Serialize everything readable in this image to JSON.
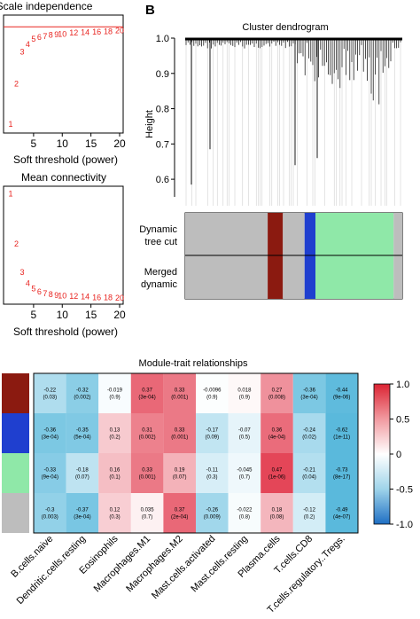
{
  "panel_label_b": "B",
  "scale_panel": {
    "title": "Scale independence",
    "xlabel": "Soft threshold (power)"
  },
  "mean_panel": {
    "title": "Mean connectivity",
    "xlabel": "Soft threshold (power)"
  },
  "dendrogram": {
    "title": "Cluster dendrogram",
    "ylabel": "Height",
    "row_labels": [
      "Dynamic\ntree cut",
      "Merged\ndynamic"
    ]
  },
  "heatmap": {
    "title": "Module-trait relationships"
  },
  "colors": {
    "accent_red": "#e8231f",
    "module_brown": "#8b1a10",
    "module_blue": "#1f3fcf",
    "module_green": "#8fe8a8",
    "module_grey": "#bdbdbd"
  },
  "chart_data": [
    {
      "type": "scatter",
      "title": "Scale independence",
      "xlabel": "Soft threshold (power)",
      "ylabel": "",
      "xlim": [
        1,
        20
      ],
      "x_ticks": [
        "5",
        "10",
        "15",
        "20"
      ],
      "points": [
        {
          "label": "1",
          "x": 1,
          "y": 0.05
        },
        {
          "label": "2",
          "x": 2,
          "y": 0.42
        },
        {
          "label": "3",
          "x": 3,
          "y": 0.71
        },
        {
          "label": "4",
          "x": 4,
          "y": 0.78
        },
        {
          "label": "5",
          "x": 5,
          "y": 0.83
        },
        {
          "label": "6",
          "x": 6,
          "y": 0.845
        },
        {
          "label": "7",
          "x": 7,
          "y": 0.855
        },
        {
          "label": "8",
          "x": 8,
          "y": 0.865
        },
        {
          "label": "9",
          "x": 9,
          "y": 0.87
        },
        {
          "label": "10",
          "x": 10,
          "y": 0.875
        },
        {
          "label": "12",
          "x": 12,
          "y": 0.885
        },
        {
          "label": "14",
          "x": 14,
          "y": 0.89
        },
        {
          "label": "16",
          "x": 16,
          "y": 0.895
        },
        {
          "label": "18",
          "x": 18,
          "y": 0.9
        },
        {
          "label": "20",
          "x": 20,
          "y": 0.905
        }
      ],
      "hline": 0.9
    },
    {
      "type": "scatter",
      "title": "Mean connectivity",
      "xlabel": "Soft threshold (power)",
      "ylabel": "",
      "xlim": [
        1,
        20
      ],
      "x_ticks": [
        "5",
        "10",
        "15",
        "20"
      ],
      "points": [
        {
          "label": "1",
          "x": 1,
          "y": 0.98
        },
        {
          "label": "2",
          "x": 2,
          "y": 0.52
        },
        {
          "label": "3",
          "x": 3,
          "y": 0.26
        },
        {
          "label": "4",
          "x": 4,
          "y": 0.16
        },
        {
          "label": "5",
          "x": 5,
          "y": 0.11
        },
        {
          "label": "6",
          "x": 6,
          "y": 0.08
        },
        {
          "label": "7",
          "x": 7,
          "y": 0.065
        },
        {
          "label": "8",
          "x": 8,
          "y": 0.055
        },
        {
          "label": "9",
          "x": 9,
          "y": 0.05
        },
        {
          "label": "10",
          "x": 10,
          "y": 0.045
        },
        {
          "label": "12",
          "x": 12,
          "y": 0.04
        },
        {
          "label": "14",
          "x": 14,
          "y": 0.035
        },
        {
          "label": "16",
          "x": 16,
          "y": 0.03
        },
        {
          "label": "18",
          "x": 18,
          "y": 0.028
        },
        {
          "label": "20",
          "x": 20,
          "y": 0.025
        }
      ]
    },
    {
      "type": "dendrogram",
      "title": "Cluster dendrogram",
      "ylabel": "Height",
      "ylim": [
        0.55,
        1.0
      ],
      "y_ticks": [
        "0.6",
        "0.7",
        "0.8",
        "0.9",
        "1.0"
      ],
      "module_rows": [
        {
          "label": "Dynamic tree cut",
          "segments": [
            [
              "grey",
              0.38
            ],
            [
              "brown",
              0.07
            ],
            [
              "grey",
              0.1
            ],
            [
              "blue",
              0.05
            ],
            [
              "green",
              0.36
            ],
            [
              "grey",
              0.04
            ]
          ]
        },
        {
          "label": "Merged dynamic",
          "segments": [
            [
              "grey",
              0.38
            ],
            [
              "brown",
              0.07
            ],
            [
              "grey",
              0.1
            ],
            [
              "blue",
              0.05
            ],
            [
              "green",
              0.36
            ],
            [
              "grey",
              0.04
            ]
          ]
        }
      ]
    },
    {
      "type": "heatmap",
      "title": "Module-trait relationships",
      "rows": [
        "brown",
        "blue",
        "green",
        "grey"
      ],
      "columns": [
        "B.cells.naive",
        "Dendritic.cells.resting",
        "Eosinophils",
        "Macrophages.M1",
        "Macrophages.M2",
        "Mast.cells.activated",
        "Mast.cells.resting",
        "Plasma.cells",
        "T.cells.CD8",
        "T.cells.regulatory..Tregs."
      ],
      "values": [
        [
          -0.22,
          -0.32,
          -0.019,
          0.37,
          0.33,
          -0.0096,
          0.018,
          0.27,
          -0.36,
          -0.44
        ],
        [
          -0.36,
          -0.35,
          0.13,
          0.31,
          0.33,
          -0.17,
          -0.07,
          0.36,
          -0.24,
          -0.62
        ],
        [
          -0.33,
          -0.18,
          0.16,
          0.33,
          0.19,
          -0.11,
          -0.045,
          0.47,
          -0.21,
          -0.73
        ],
        [
          -0.3,
          -0.37,
          0.12,
          0.035,
          0.37,
          -0.26,
          -0.022,
          0.18,
          -0.12,
          -0.49
        ]
      ],
      "pvalues": [
        [
          "(0.03)",
          "(0.002)",
          "(0.9)",
          "(3e-04)",
          "(0.001)",
          "(0.9)",
          "(0.9)",
          "(0.008)",
          "(3e-04)",
          "(9e-06)"
        ],
        [
          "(3e-04)",
          "(5e-04)",
          "(0.2)",
          "(0.002)",
          "(0.001)",
          "(0.09)",
          "(0.5)",
          "(4e-04)",
          "(0.02)",
          "(1e-11)"
        ],
        [
          "(9e-04)",
          "(0.07)",
          "(0.1)",
          "(0.001)",
          "(0.07)",
          "(0.3)",
          "(0.7)",
          "(1e-06)",
          "(0.04)",
          "(8e-17)"
        ],
        [
          "(0.003)",
          "(3e-04)",
          "(0.3)",
          "(0.7)",
          "(2e-04)",
          "(0.009)",
          "(0.8)",
          "(0.08)",
          "(0.2)",
          "(4e-07)"
        ]
      ],
      "colorbar": {
        "range": [
          -1,
          1
        ],
        "ticks": [
          "1.0",
          "0.5",
          "0",
          "-0.5",
          "-1.0"
        ]
      }
    }
  ]
}
